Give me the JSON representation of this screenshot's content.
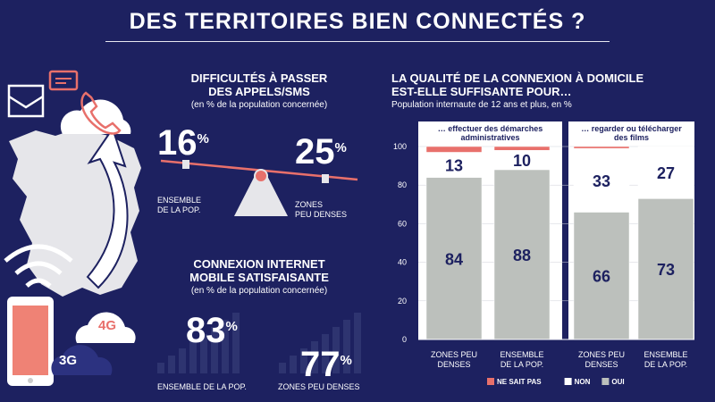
{
  "title": "DES TERRITOIRES BIEN CONNECTÉS ?",
  "left": {
    "calls": {
      "heading_1": "DIFFICULTÉS À PASSER",
      "heading_2": "DES APPELS/SMS",
      "subheading": "(en % de la population concernée)",
      "items": [
        {
          "value": "16",
          "label_1": "ENSEMBLE",
          "label_2": "DE LA POP."
        },
        {
          "value": "25",
          "label_1": "ZONES",
          "label_2": "PEU DENSES"
        }
      ]
    },
    "mobile": {
      "heading_1": "CONNEXION INTERNET",
      "heading_2": "MOBILE SATISFAISANTE",
      "subheading": "(en % de la population concernée)",
      "items": [
        {
          "value": "83",
          "label": "ENSEMBLE DE LA POP."
        },
        {
          "value": "77",
          "label": "ZONES PEU DENSES"
        }
      ]
    },
    "percent_sign": "%",
    "badges": {
      "g4": "4G",
      "g3": "3G"
    }
  },
  "chart_data": {
    "type": "bar",
    "stacked": true,
    "title_1": "LA QUALITÉ DE LA CONNEXION À DOMICILE",
    "title_2": "EST-ELLE SUFFISANTE POUR…",
    "subtitle": "Population internaute de 12 ans et plus, en %",
    "groups": [
      {
        "label_1": "… effectuer des démarches",
        "label_2": "administratives"
      },
      {
        "label_1": "… regarder ou télécharger",
        "label_2": "des films"
      }
    ],
    "categories": [
      {
        "line1": "ZONES PEU",
        "line2": "DENSES"
      },
      {
        "line1": "ENSEMBLE",
        "line2": "DE LA POP."
      },
      {
        "line1": "ZONES PEU",
        "line2": "DENSES"
      },
      {
        "line1": "ENSEMBLE",
        "line2": "DE LA POP."
      }
    ],
    "series": [
      {
        "name": "OUI",
        "color": "#bcc0bc",
        "values": [
          84,
          88,
          66,
          73
        ]
      },
      {
        "name": "NON",
        "color": "#ffffff",
        "values": [
          13,
          10,
          33,
          27
        ]
      },
      {
        "name": "NE SAIT PAS",
        "color": "#e8706b",
        "values": [
          3,
          2,
          1,
          0
        ]
      }
    ],
    "labeled_series": [
      "OUI",
      "NON"
    ],
    "y_ticks": [
      0,
      20,
      40,
      60,
      80,
      100
    ],
    "ylim": [
      0,
      100
    ],
    "legend": [
      "NE SAIT PAS",
      "NON",
      "OUI"
    ],
    "legend_position": "bottom"
  }
}
